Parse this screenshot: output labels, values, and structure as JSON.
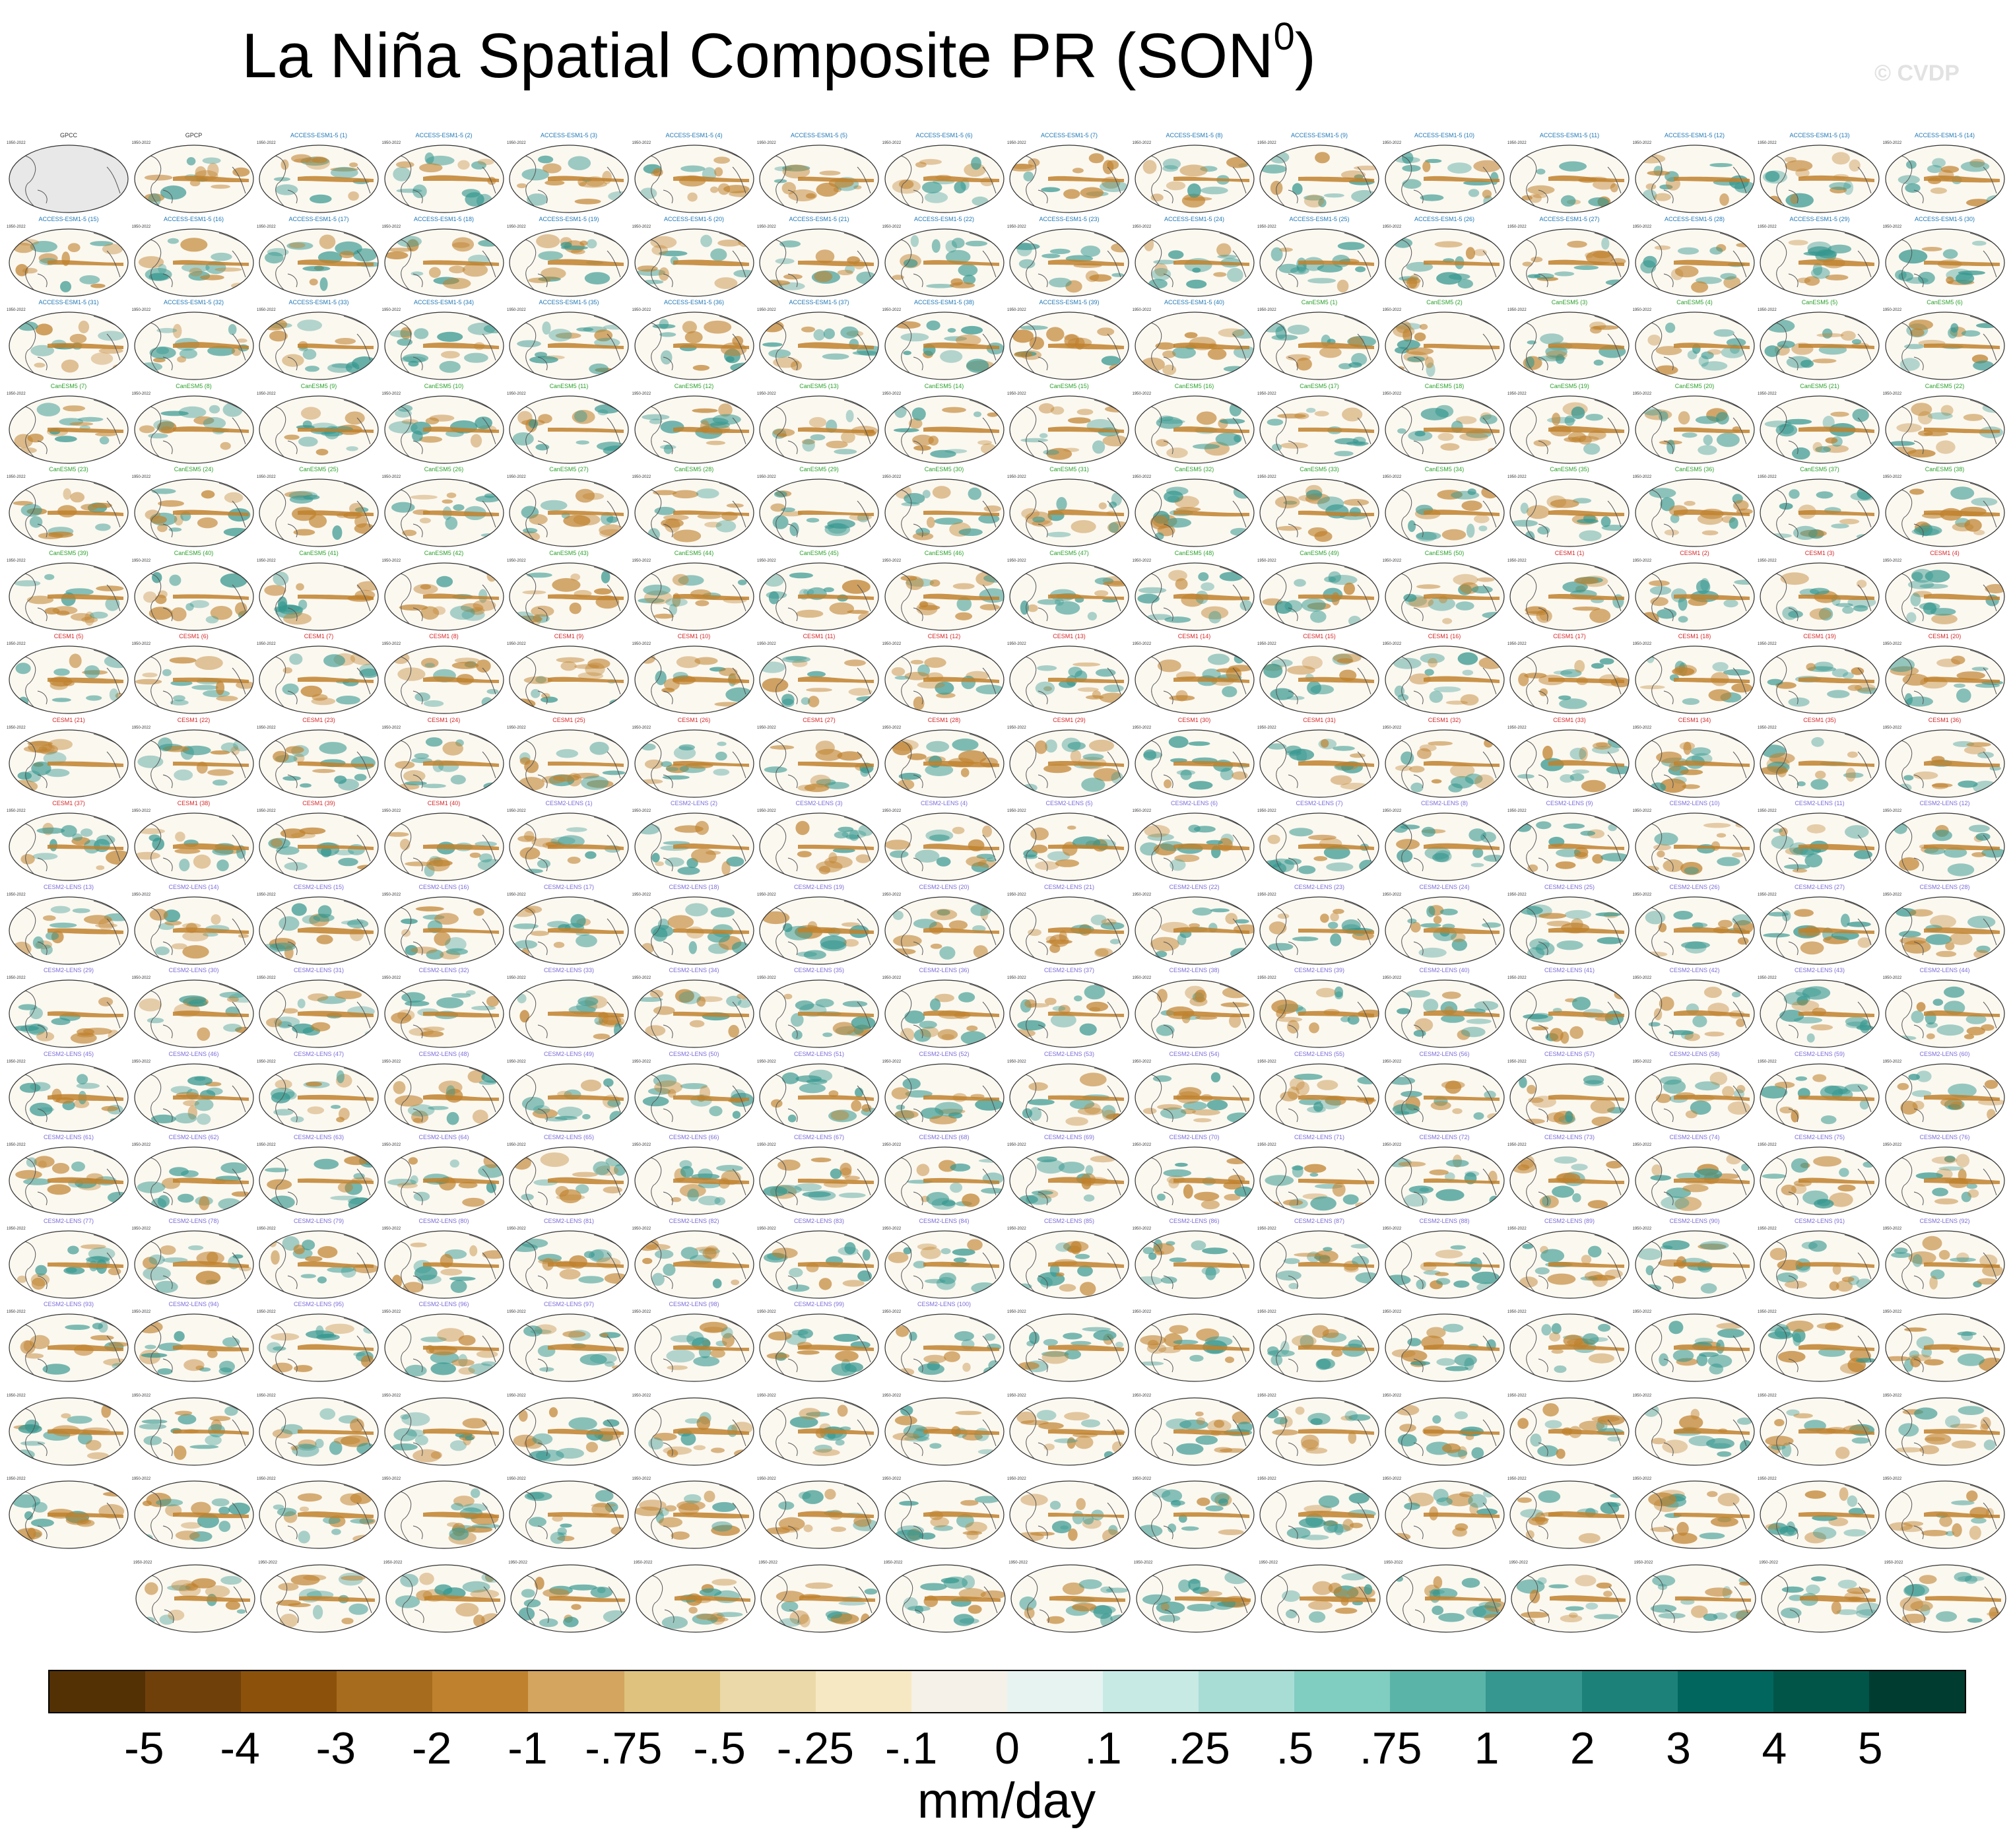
{
  "title": "La Niña Spatial Composite PR (SON",
  "title_sup": "0",
  "title_end": ")",
  "watermark": "© CVDP",
  "colorbar": {
    "colors": [
      "#543005",
      "#70400b",
      "#8c510a",
      "#a86c1f",
      "#bf812d",
      "#d4a55f",
      "#dfc27d",
      "#ecd9a9",
      "#f6e8c3",
      "#f5f1e8",
      "#e7f3f1",
      "#c7eae5",
      "#a8ddd5",
      "#80cdc1",
      "#5ab4a8",
      "#35978f",
      "#1c8178",
      "#01665e",
      "#015548",
      "#003c30"
    ],
    "tick_labels": [
      "-5",
      "-4",
      "-3",
      "-2",
      "-1",
      "-.75",
      "-.5",
      "-.25",
      "-.1",
      "0",
      ".1",
      ".25",
      ".5",
      ".75",
      "1",
      "2",
      "3",
      "4",
      "5"
    ],
    "units": "mm/day"
  },
  "panels": {
    "rows": 18,
    "cols": 16,
    "last_row_count": 15,
    "period": "1950-2022",
    "first_titles": [
      "GPCC",
      "GPCP"
    ],
    "observations": [
      "GPCC",
      "GPCP"
    ],
    "model_groups": [
      {
        "name": "ACCESS-ESM1-5",
        "color": "#1f77b4",
        "count": 40
      },
      {
        "name": "CanESM5",
        "color": "#2ca02c",
        "count": 50
      },
      {
        "name": "CESM1",
        "color": "#d62728",
        "count": 40
      },
      {
        "name": "CESM2-LENS",
        "color": "#7b6cd8",
        "count": 100
      }
    ],
    "anomaly_colors": {
      "dry": "#bf812d",
      "wet": "#35978f"
    }
  }
}
